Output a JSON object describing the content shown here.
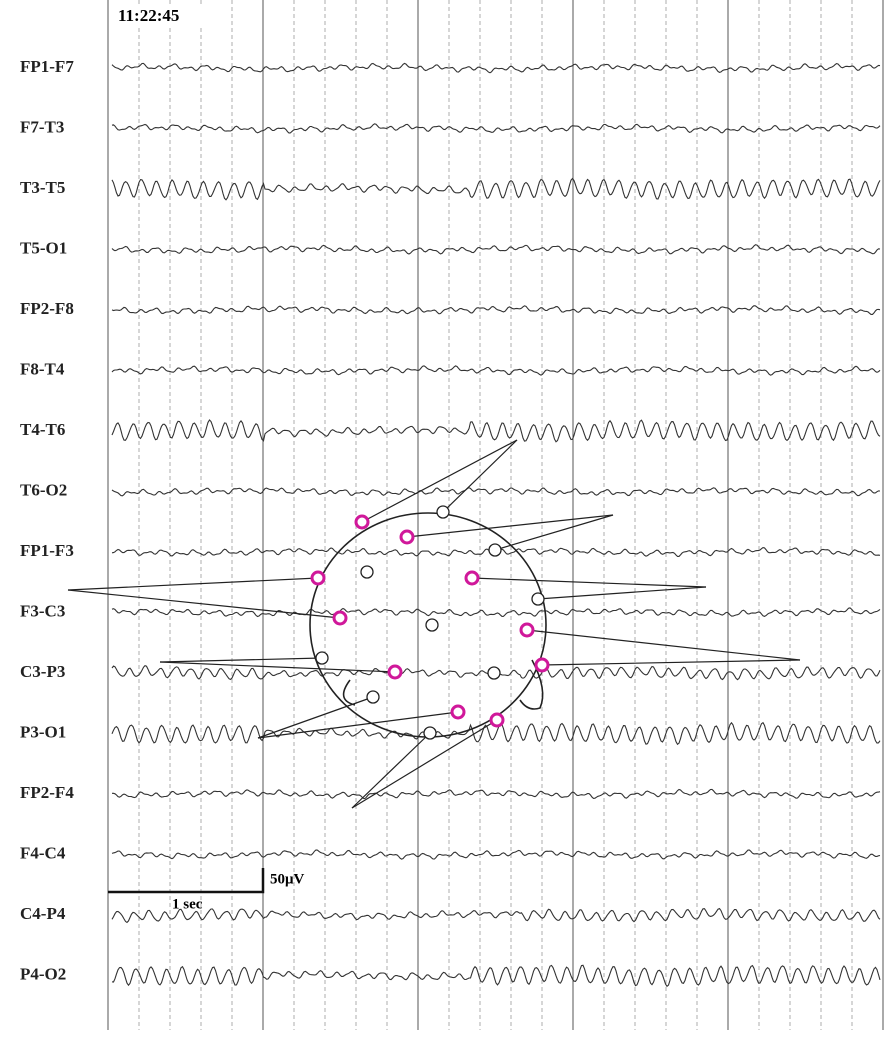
{
  "time": "11:22:45",
  "channels": [
    "FP1-F7",
    "F7-T3",
    "T3-T5",
    "T5-O1",
    "FP2-F8",
    "F8-T4",
    "T4-T6",
    "T6-O2",
    "FP1-F3",
    "F3-C3",
    "C3-P3",
    "P3-O1",
    "FP2-F4",
    "F4-C4",
    "C4-P4",
    "P4-O2"
  ],
  "scale": {
    "time": "1 sec",
    "amplitude": "50μV"
  }
}
